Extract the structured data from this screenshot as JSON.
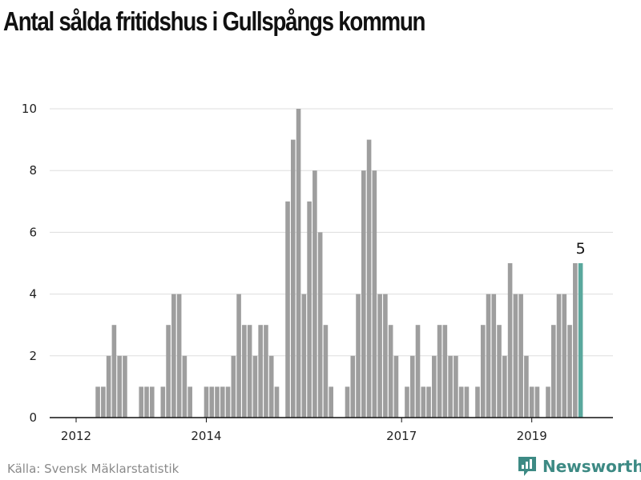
{
  "title": "Antal sålda fritidshus i Gullspångs kommun",
  "source": "Källa: Svensk Mäklarstatistik",
  "brand": {
    "name": "Newsworthy",
    "icon": "newsworthy-logo-icon"
  },
  "colors": {
    "bar": "#9e9e9e",
    "highlight": "#5aa89d",
    "grid": "#dddddd",
    "axis": "#111111",
    "brand": "#3d8a84"
  },
  "chart_data": {
    "type": "bar",
    "title": "Antal sålda fritidshus i Gullspångs kommun",
    "xlabel": "",
    "ylabel": "",
    "ylim": [
      0,
      10
    ],
    "yticks": [
      0,
      2,
      4,
      6,
      8,
      10
    ],
    "grid": true,
    "x_tick_labels": [
      {
        "label": "2012",
        "index": 0
      },
      {
        "label": "2014",
        "index": 24
      },
      {
        "label": "2017",
        "index": 60
      },
      {
        "label": "2019",
        "index": 84
      }
    ],
    "categories": [
      "2012-01",
      "2012-02",
      "2012-03",
      "2012-04",
      "2012-05",
      "2012-06",
      "2012-07",
      "2012-08",
      "2012-09",
      "2012-10",
      "2012-11",
      "2012-12",
      "2013-01",
      "2013-02",
      "2013-03",
      "2013-04",
      "2013-05",
      "2013-06",
      "2013-07",
      "2013-08",
      "2013-09",
      "2013-10",
      "2013-11",
      "2013-12",
      "2014-01",
      "2014-02",
      "2014-03",
      "2014-04",
      "2014-05",
      "2014-06",
      "2014-07",
      "2014-08",
      "2014-09",
      "2014-10",
      "2014-11",
      "2014-12",
      "2015-01",
      "2015-02",
      "2015-03",
      "2015-04",
      "2015-05",
      "2015-06",
      "2015-07",
      "2015-08",
      "2015-09",
      "2015-10",
      "2015-11",
      "2015-12",
      "2016-01",
      "2016-02",
      "2016-03",
      "2016-04",
      "2016-05",
      "2016-06",
      "2016-07",
      "2016-08",
      "2016-09",
      "2016-10",
      "2016-11",
      "2016-12",
      "2017-01",
      "2017-02",
      "2017-03",
      "2017-04",
      "2017-05",
      "2017-06",
      "2017-07",
      "2017-08",
      "2017-09",
      "2017-10",
      "2017-11",
      "2017-12",
      "2018-01",
      "2018-02",
      "2018-03",
      "2018-04",
      "2018-05",
      "2018-06",
      "2018-07",
      "2018-08",
      "2018-09",
      "2018-10",
      "2018-11",
      "2018-12",
      "2019-01",
      "2019-02",
      "2019-03",
      "2019-04",
      "2019-05",
      "2019-06",
      "2019-07",
      "2019-08",
      "2019-09",
      "2019-10"
    ],
    "values": [
      0,
      0,
      0,
      0,
      1,
      1,
      2,
      3,
      2,
      2,
      0,
      0,
      1,
      1,
      1,
      0,
      1,
      3,
      4,
      4,
      2,
      1,
      0,
      0,
      1,
      1,
      1,
      1,
      1,
      2,
      4,
      3,
      3,
      2,
      3,
      3,
      2,
      1,
      0,
      7,
      9,
      10,
      4,
      7,
      8,
      6,
      3,
      1,
      0,
      0,
      1,
      2,
      4,
      8,
      9,
      8,
      4,
      4,
      3,
      2,
      0,
      1,
      2,
      3,
      1,
      1,
      2,
      3,
      3,
      2,
      2,
      1,
      1,
      0,
      1,
      3,
      4,
      4,
      3,
      2,
      5,
      4,
      4,
      2,
      1,
      1,
      0,
      1,
      3,
      4,
      4,
      3,
      5,
      5
    ],
    "highlight": {
      "category": "2019-10",
      "value": 5,
      "label": "5"
    }
  }
}
